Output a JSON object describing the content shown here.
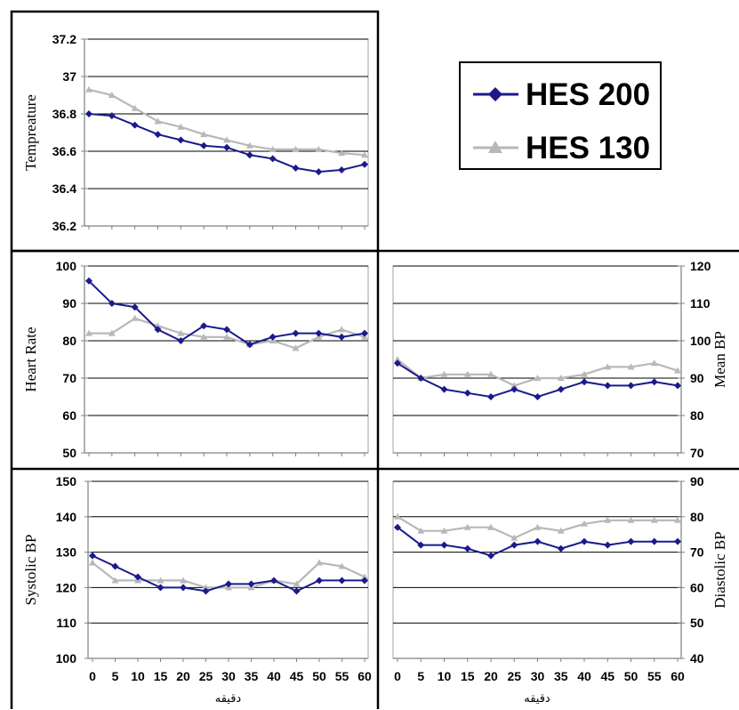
{
  "legend": {
    "items": [
      {
        "label": "HES 200",
        "color": "#1a1a8c",
        "marker": "diamond"
      },
      {
        "label": "HES 130",
        "color": "#b8b8b8",
        "marker": "triangle"
      }
    ]
  },
  "chart_data": [
    {
      "id": "temp",
      "type": "line",
      "title": "",
      "xlabel": "",
      "ylabel": "Tempreature",
      "ylim": [
        36.2,
        37.2
      ],
      "yticks": [
        "36.2",
        "36.4",
        "36.6",
        "36.8",
        "37",
        "37.2"
      ],
      "xticks": [],
      "grid": true,
      "series": [
        {
          "name": "HES 200",
          "x": [
            0,
            5,
            10,
            15,
            20,
            25,
            30,
            35,
            40,
            45,
            50,
            55,
            60
          ],
          "values": [
            36.8,
            36.79,
            36.74,
            36.69,
            36.66,
            36.63,
            36.62,
            36.58,
            36.56,
            36.51,
            36.49,
            36.5,
            36.53
          ]
        },
        {
          "name": "HES 130",
          "x": [
            0,
            5,
            10,
            15,
            20,
            25,
            30,
            35,
            40,
            45,
            50,
            55,
            60
          ],
          "values": [
            36.93,
            36.9,
            36.83,
            36.76,
            36.73,
            36.69,
            36.66,
            36.63,
            36.61,
            36.61,
            36.61,
            36.59,
            36.58
          ]
        }
      ]
    },
    {
      "id": "hr",
      "type": "line",
      "title": "",
      "xlabel": "",
      "ylabel": "Heart Rate",
      "ylim": [
        50,
        100
      ],
      "yticks": [
        "50",
        "60",
        "70",
        "80",
        "90",
        "100"
      ],
      "xticks": [],
      "grid": true,
      "series": [
        {
          "name": "HES 200",
          "x": [
            0,
            5,
            10,
            15,
            20,
            25,
            30,
            35,
            40,
            45,
            50,
            55,
            60
          ],
          "values": [
            96,
            90,
            89,
            83,
            80,
            84,
            83,
            79,
            81,
            82,
            82,
            81,
            82
          ]
        },
        {
          "name": "HES 130",
          "x": [
            0,
            5,
            10,
            15,
            20,
            25,
            30,
            35,
            40,
            45,
            50,
            55,
            60
          ],
          "values": [
            82,
            82,
            86,
            84,
            82,
            81,
            81,
            79,
            80,
            78,
            81,
            83,
            81
          ]
        }
      ]
    },
    {
      "id": "map",
      "type": "line",
      "title": "",
      "xlabel": "",
      "ylabel": "Mean BP",
      "ylim": [
        70,
        120
      ],
      "yticks": [
        "70",
        "80",
        "90",
        "100",
        "110",
        "120"
      ],
      "xticks": [],
      "grid": true,
      "series": [
        {
          "name": "HES 200",
          "x": [
            0,
            5,
            10,
            15,
            20,
            25,
            30,
            35,
            40,
            45,
            50,
            55,
            60
          ],
          "values": [
            94,
            90,
            87,
            86,
            85,
            87,
            85,
            87,
            89,
            88,
            88,
            89,
            88
          ]
        },
        {
          "name": "HES 130",
          "x": [
            0,
            5,
            10,
            15,
            20,
            25,
            30,
            35,
            40,
            45,
            50,
            55,
            60
          ],
          "values": [
            95,
            90,
            91,
            91,
            91,
            88,
            90,
            90,
            91,
            93,
            93,
            94,
            92
          ]
        }
      ]
    },
    {
      "id": "sbp",
      "type": "line",
      "title": "",
      "xlabel": "دقیقه",
      "ylabel": "Systolic BP",
      "ylim": [
        100,
        150
      ],
      "yticks": [
        "100",
        "110",
        "120",
        "130",
        "140",
        "150"
      ],
      "xticks": [
        "0",
        "5",
        "10",
        "15",
        "20",
        "25",
        "30",
        "35",
        "40",
        "45",
        "50",
        "55",
        "60"
      ],
      "grid": true,
      "series": [
        {
          "name": "HES 200",
          "x": [
            0,
            5,
            10,
            15,
            20,
            25,
            30,
            35,
            40,
            45,
            50,
            55,
            60
          ],
          "values": [
            129,
            126,
            123,
            120,
            120,
            119,
            121,
            121,
            122,
            119,
            122,
            122,
            122
          ]
        },
        {
          "name": "HES 130",
          "x": [
            0,
            5,
            10,
            15,
            20,
            25,
            30,
            35,
            40,
            45,
            50,
            55,
            60
          ],
          "values": [
            127,
            122,
            122,
            122,
            122,
            120,
            120,
            120,
            122,
            121,
            127,
            126,
            123
          ]
        }
      ]
    },
    {
      "id": "dbp",
      "type": "line",
      "title": "",
      "xlabel": "دقیقه",
      "ylabel": "Diastolic BP",
      "ylim": [
        40,
        90
      ],
      "yticks": [
        "40",
        "50",
        "60",
        "70",
        "80",
        "90"
      ],
      "xticks": [
        "0",
        "5",
        "10",
        "15",
        "20",
        "25",
        "30",
        "35",
        "40",
        "45",
        "50",
        "55",
        "60"
      ],
      "grid": true,
      "series": [
        {
          "name": "HES 200",
          "x": [
            0,
            5,
            10,
            15,
            20,
            25,
            30,
            35,
            40,
            45,
            50,
            55,
            60
          ],
          "values": [
            77,
            72,
            72,
            71,
            69,
            72,
            73,
            71,
            73,
            72,
            73,
            73,
            73
          ]
        },
        {
          "name": "HES 130",
          "x": [
            0,
            5,
            10,
            15,
            20,
            25,
            30,
            35,
            40,
            45,
            50,
            55,
            60
          ],
          "values": [
            80,
            76,
            76,
            77,
            77,
            74,
            77,
            76,
            78,
            79,
            79,
            79,
            79
          ]
        }
      ]
    }
  ]
}
